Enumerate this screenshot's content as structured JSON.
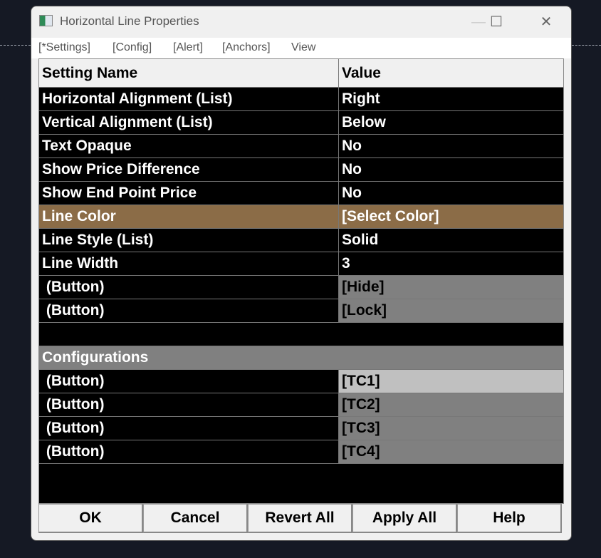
{
  "window": {
    "title": "Horizontal Line Properties",
    "minimize": "—",
    "maximize": "☐",
    "close": "✕"
  },
  "menu": [
    "[*Settings]",
    "[Config]",
    "[Alert]",
    "[Anchors]",
    "View"
  ],
  "table": {
    "headers": [
      "Setting Name",
      "Value"
    ],
    "rows": [
      {
        "name": "Horizontal Alignment (List)",
        "value": "Right",
        "style": "normal"
      },
      {
        "name": "Vertical Alignment (List)",
        "value": "Below",
        "style": "normal"
      },
      {
        "name": "Text Opaque",
        "value": "No",
        "style": "normal"
      },
      {
        "name": "Show Price Difference",
        "value": "No",
        "style": "normal"
      },
      {
        "name": "Show End Point Price",
        "value": "No",
        "style": "normal"
      },
      {
        "name": "Line Color",
        "value": "[Select Color]",
        "style": "color"
      },
      {
        "name": "Line Style (List)",
        "value": "Solid",
        "style": "normal"
      },
      {
        "name": "Line Width",
        "value": "3",
        "style": "normal"
      },
      {
        "name": " (Button)",
        "value": "[Hide]",
        "style": "button"
      },
      {
        "name": " (Button)",
        "value": "[Lock]",
        "style": "button"
      },
      {
        "name": "",
        "value": "",
        "style": "empty"
      },
      {
        "name": "Configurations",
        "value": "",
        "style": "section"
      },
      {
        "name": " (Button)",
        "value": "[TC1]",
        "style": "button-light"
      },
      {
        "name": " (Button)",
        "value": "[TC2]",
        "style": "button"
      },
      {
        "name": " (Button)",
        "value": "[TC3]",
        "style": "button"
      },
      {
        "name": " (Button)",
        "value": "[TC4]",
        "style": "button"
      }
    ]
  },
  "buttons": [
    "OK",
    "Cancel",
    "Revert All",
    "Apply All",
    "Help"
  ],
  "colors": {
    "line_color": "#8b6c47",
    "button_cell": "#808080",
    "button_light": "#c0c0c0",
    "background": "#151924"
  }
}
